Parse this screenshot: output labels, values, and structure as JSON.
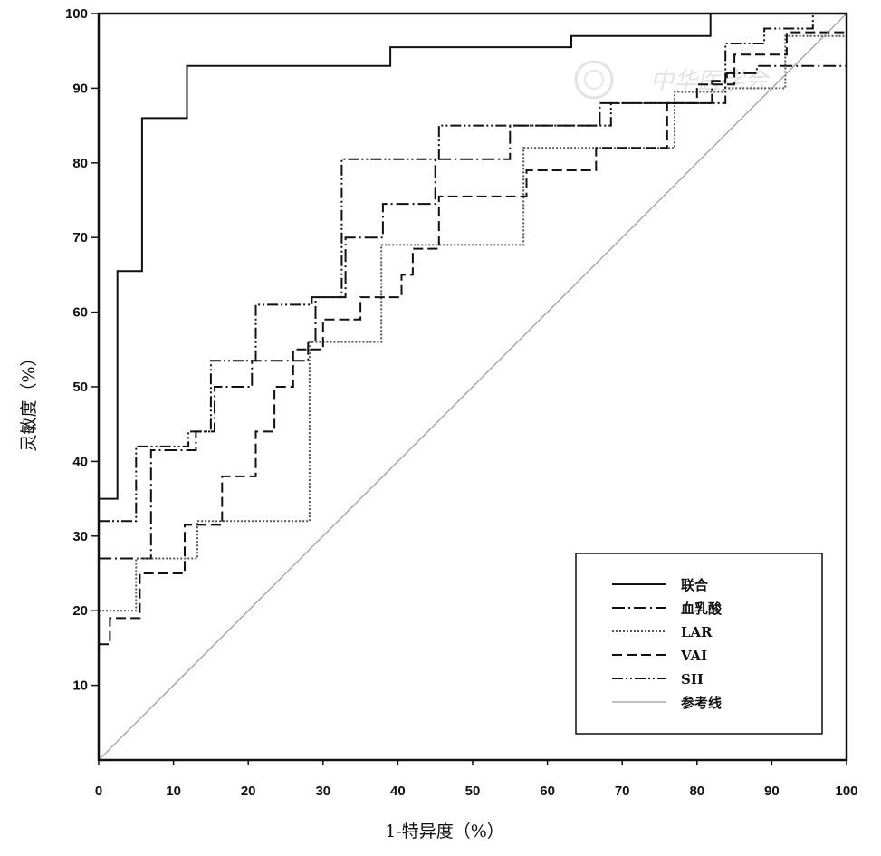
{
  "chart_data": {
    "type": "line",
    "xlabel": "1-特异度（%）",
    "ylabel": "灵敏度（%）",
    "xlim": [
      0,
      100
    ],
    "ylim": [
      0,
      100
    ],
    "x_ticks": [
      "0",
      "10",
      "20",
      "30",
      "40",
      "50",
      "60",
      "70",
      "80",
      "90",
      "100"
    ],
    "y_ticks": [
      "10",
      "20",
      "30",
      "40",
      "50",
      "60",
      "70",
      "80",
      "90",
      "100"
    ],
    "grid": false,
    "legend_position": "bottom-right",
    "series": [
      {
        "name": "联合",
        "style": "solid",
        "color": "#111111",
        "points": [
          [
            0,
            35
          ],
          [
            2.5,
            35
          ],
          [
            2.5,
            65.5
          ],
          [
            5.8,
            65.5
          ],
          [
            5.8,
            86
          ],
          [
            11.8,
            86
          ],
          [
            11.8,
            93
          ],
          [
            39,
            93
          ],
          [
            39,
            95.5
          ],
          [
            63.2,
            95.5
          ],
          [
            63.2,
            97
          ],
          [
            81.8,
            97
          ],
          [
            81.8,
            100
          ],
          [
            100,
            100
          ]
        ]
      },
      {
        "name": "血乳酸",
        "style": "dashdot",
        "color": "#111111",
        "points": [
          [
            0,
            27
          ],
          [
            7,
            27
          ],
          [
            7,
            41.5
          ],
          [
            13,
            41.5
          ],
          [
            13,
            44
          ],
          [
            15.5,
            44
          ],
          [
            15.5,
            50
          ],
          [
            20.5,
            50
          ],
          [
            20.5,
            53.5
          ],
          [
            28,
            53.5
          ],
          [
            28,
            56
          ],
          [
            29,
            56
          ],
          [
            29,
            62
          ],
          [
            33,
            62
          ],
          [
            33,
            70
          ],
          [
            38,
            70
          ],
          [
            38,
            74.5
          ],
          [
            45,
            74.5
          ],
          [
            45,
            80.5
          ],
          [
            55,
            80.5
          ],
          [
            55,
            85
          ],
          [
            67,
            85
          ],
          [
            67,
            88
          ],
          [
            82,
            88
          ],
          [
            82,
            91
          ],
          [
            84,
            91
          ],
          [
            84,
            92
          ],
          [
            88,
            92
          ],
          [
            88,
            93
          ],
          [
            100,
            93
          ]
        ]
      },
      {
        "name": "LAR",
        "style": "dotted",
        "color": "#555555",
        "points": [
          [
            0,
            20
          ],
          [
            5,
            20
          ],
          [
            5,
            27
          ],
          [
            13.2,
            27
          ],
          [
            13.2,
            32
          ],
          [
            28.2,
            32
          ],
          [
            28.2,
            56
          ],
          [
            37.8,
            56
          ],
          [
            37.8,
            69
          ],
          [
            56.8,
            69
          ],
          [
            56.8,
            82
          ],
          [
            77,
            82
          ],
          [
            77,
            89.5
          ],
          [
            83.5,
            89.5
          ],
          [
            83.5,
            90
          ],
          [
            91.8,
            90
          ],
          [
            91.8,
            97
          ],
          [
            100,
            97
          ]
        ]
      },
      {
        "name": "VAI",
        "style": "dashed",
        "color": "#111111",
        "points": [
          [
            0,
            15.5
          ],
          [
            1.5,
            15.5
          ],
          [
            1.5,
            19
          ],
          [
            5.5,
            19
          ],
          [
            5.5,
            25
          ],
          [
            11.5,
            25
          ],
          [
            11.5,
            31.5
          ],
          [
            16.5,
            31.5
          ],
          [
            16.5,
            38
          ],
          [
            21,
            38
          ],
          [
            21,
            44
          ],
          [
            23.5,
            44
          ],
          [
            23.5,
            50
          ],
          [
            26,
            50
          ],
          [
            26,
            55
          ],
          [
            30,
            55
          ],
          [
            30,
            59
          ],
          [
            35,
            59
          ],
          [
            35,
            62
          ],
          [
            40.5,
            62
          ],
          [
            40.5,
            65
          ],
          [
            42,
            65
          ],
          [
            42,
            68.5
          ],
          [
            45.5,
            68.5
          ],
          [
            45.5,
            75.5
          ],
          [
            57.2,
            75.5
          ],
          [
            57.2,
            79
          ],
          [
            66.5,
            79
          ],
          [
            66.5,
            82
          ],
          [
            76,
            82
          ],
          [
            76,
            88
          ],
          [
            80,
            88
          ],
          [
            80,
            90.5
          ],
          [
            85,
            90.5
          ],
          [
            85,
            94.5
          ],
          [
            92,
            94.5
          ],
          [
            92,
            97.5
          ],
          [
            100,
            97.5
          ]
        ]
      },
      {
        "name": "SII",
        "style": "dashdotdot",
        "color": "#111111",
        "points": [
          [
            0,
            32
          ],
          [
            5,
            32
          ],
          [
            5,
            42
          ],
          [
            12,
            42
          ],
          [
            12,
            44
          ],
          [
            15,
            44
          ],
          [
            15,
            53.5
          ],
          [
            21,
            53.5
          ],
          [
            21,
            61
          ],
          [
            28.5,
            61
          ],
          [
            28.5,
            62
          ],
          [
            32.5,
            62
          ],
          [
            32.5,
            80.5
          ],
          [
            45.5,
            80.5
          ],
          [
            45.5,
            85
          ],
          [
            68.5,
            85
          ],
          [
            68.5,
            88
          ],
          [
            83.8,
            88
          ],
          [
            83.8,
            96
          ],
          [
            89,
            96
          ],
          [
            89,
            98
          ],
          [
            95.5,
            98
          ],
          [
            95.5,
            100
          ],
          [
            100,
            100
          ]
        ]
      },
      {
        "name": "参考线",
        "style": "solid",
        "color": "#9a9a9a",
        "points": [
          [
            0,
            0
          ],
          [
            100,
            100
          ]
        ]
      }
    ]
  }
}
